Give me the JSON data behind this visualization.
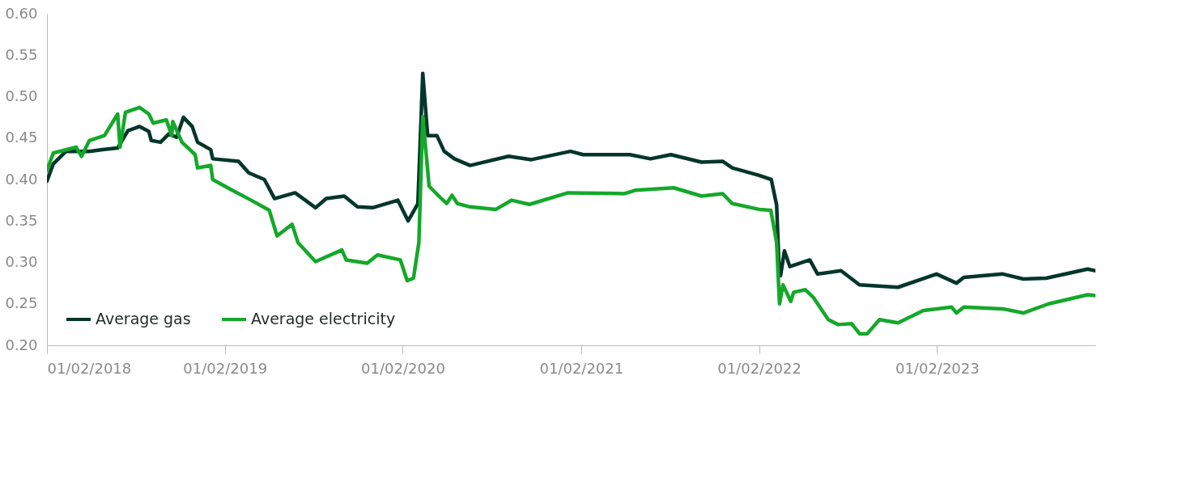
{
  "chart_data": {
    "type": "line",
    "xlim": [
      "2018-02-01",
      "2023-12-23"
    ],
    "xticks": [
      {
        "value": "2018-02-01",
        "label": "01/02/2018"
      },
      {
        "value": "2019-02-01",
        "label": "01/02/2019"
      },
      {
        "value": "2020-02-01",
        "label": "01/02/2020"
      },
      {
        "value": "2021-02-01",
        "label": "01/02/2021"
      },
      {
        "value": "2022-02-01",
        "label": "01/02/2022"
      },
      {
        "value": "2023-02-01",
        "label": "01/02/2023"
      }
    ],
    "ylim": [
      0.2,
      0.6
    ],
    "yticks": [
      {
        "value": 0.2,
        "label": "0.20"
      },
      {
        "value": 0.25,
        "label": "0.25"
      },
      {
        "value": 0.3,
        "label": "0.30"
      },
      {
        "value": 0.35,
        "label": "0.35"
      },
      {
        "value": 0.4,
        "label": "0.40"
      },
      {
        "value": 0.45,
        "label": "0.45"
      },
      {
        "value": 0.5,
        "label": "0.50"
      },
      {
        "value": 0.55,
        "label": "0.55"
      },
      {
        "value": 0.6,
        "label": "0.60"
      }
    ],
    "grid": false,
    "legend": "bottom left",
    "marker": "none",
    "line_style": "solid",
    "series": [
      {
        "name": "Average gas",
        "color": "#04362a",
        "x": [
          "2018-02-01",
          "2018-02-14",
          "2018-03-12",
          "2018-04-29",
          "2018-05-26",
          "2018-06-26",
          "2018-07-17",
          "2018-08-10",
          "2018-08-29",
          "2018-09-03",
          "2018-09-22",
          "2018-10-09",
          "2018-10-25",
          "2018-11-08",
          "2018-11-26",
          "2018-12-07",
          "2019-01-03",
          "2019-01-07",
          "2019-03-01",
          "2019-03-22",
          "2019-04-23",
          "2019-05-14",
          "2019-06-25",
          "2019-08-06",
          "2019-08-28",
          "2019-10-04",
          "2019-10-31",
          "2019-12-01",
          "2020-01-22",
          "2020-02-12",
          "2020-03-03",
          "2020-03-13",
          "2020-03-23",
          "2020-04-11",
          "2020-04-26",
          "2020-05-17",
          "2020-06-18",
          "2020-09-05",
          "2020-10-22",
          "2021-01-10",
          "2021-02-05",
          "2021-05-12",
          "2021-06-23",
          "2021-08-04",
          "2021-10-06",
          "2021-11-18",
          "2021-12-08",
          "2022-02-01",
          "2022-02-26",
          "2022-03-09",
          "2022-03-14",
          "2022-03-17",
          "2022-03-25",
          "2022-04-05",
          "2022-05-16",
          "2022-06-01",
          "2022-07-19",
          "2022-08-26",
          "2022-11-13",
          "2023-01-31",
          "2023-03-13",
          "2023-03-28",
          "2023-06-16",
          "2023-07-28",
          "2023-09-13",
          "2023-12-07",
          "2023-12-23"
        ],
        "values": [
          0.398,
          0.419,
          0.434,
          0.434,
          0.436,
          0.438,
          0.459,
          0.464,
          0.458,
          0.447,
          0.445,
          0.455,
          0.451,
          0.475,
          0.464,
          0.445,
          0.436,
          0.425,
          0.422,
          0.408,
          0.4,
          0.377,
          0.384,
          0.366,
          0.377,
          0.38,
          0.367,
          0.366,
          0.375,
          0.35,
          0.371,
          0.528,
          0.453,
          0.453,
          0.434,
          0.425,
          0.417,
          0.428,
          0.424,
          0.434,
          0.43,
          0.43,
          0.425,
          0.43,
          0.421,
          0.422,
          0.414,
          0.405,
          0.4,
          0.369,
          0.292,
          0.284,
          0.314,
          0.295,
          0.303,
          0.286,
          0.29,
          0.273,
          0.27,
          0.286,
          0.275,
          0.282,
          0.286,
          0.28,
          0.281,
          0.292,
          0.29
        ]
      },
      {
        "name": "Average electricity",
        "color": "#14a82a",
        "x": [
          "2018-02-01",
          "2018-02-14",
          "2018-04-02",
          "2018-04-13",
          "2018-04-29",
          "2018-05-30",
          "2018-06-26",
          "2018-07-01",
          "2018-07-12",
          "2018-08-10",
          "2018-08-29",
          "2018-09-07",
          "2018-10-04",
          "2018-10-15",
          "2018-10-17",
          "2018-11-05",
          "2018-12-02",
          "2018-12-07",
          "2019-01-03",
          "2019-01-07",
          "2019-02-13",
          "2019-03-27",
          "2019-05-03",
          "2019-05-19",
          "2019-06-19",
          "2019-07-01",
          "2019-08-06",
          "2019-09-29",
          "2019-10-08",
          "2019-11-20",
          "2019-12-11",
          "2020-01-27",
          "2020-02-10",
          "2020-02-23",
          "2020-03-05",
          "2020-03-13",
          "2020-03-26",
          "2020-04-15",
          "2020-05-01",
          "2020-05-12",
          "2020-05-23",
          "2020-06-18",
          "2020-08-10",
          "2020-09-11",
          "2020-10-18",
          "2021-01-05",
          "2021-05-01",
          "2021-05-23",
          "2021-08-10",
          "2021-10-06",
          "2021-11-18",
          "2021-12-08",
          "2022-02-01",
          "2022-02-25",
          "2022-03-09",
          "2022-03-14",
          "2022-03-15",
          "2022-03-22",
          "2022-04-07",
          "2022-04-13",
          "2022-05-07",
          "2022-05-23",
          "2022-06-23",
          "2022-07-13",
          "2022-08-10",
          "2022-08-26",
          "2022-09-11",
          "2022-10-06",
          "2022-11-13",
          "2023-01-04",
          "2023-03-03",
          "2023-03-13",
          "2023-03-28",
          "2023-06-16",
          "2023-07-28",
          "2023-09-18",
          "2023-12-07",
          "2023-12-23"
        ],
        "values": [
          0.411,
          0.432,
          0.439,
          0.428,
          0.447,
          0.453,
          0.479,
          0.439,
          0.481,
          0.487,
          0.479,
          0.468,
          0.472,
          0.453,
          0.47,
          0.445,
          0.43,
          0.414,
          0.417,
          0.4,
          0.388,
          0.375,
          0.363,
          0.332,
          0.346,
          0.324,
          0.301,
          0.315,
          0.303,
          0.299,
          0.309,
          0.303,
          0.278,
          0.281,
          0.324,
          0.476,
          0.392,
          0.38,
          0.371,
          0.381,
          0.371,
          0.367,
          0.364,
          0.375,
          0.37,
          0.384,
          0.383,
          0.387,
          0.39,
          0.38,
          0.383,
          0.371,
          0.364,
          0.363,
          0.324,
          0.261,
          0.25,
          0.273,
          0.253,
          0.264,
          0.267,
          0.258,
          0.231,
          0.225,
          0.226,
          0.214,
          0.214,
          0.231,
          0.227,
          0.242,
          0.246,
          0.239,
          0.246,
          0.244,
          0.239,
          0.25,
          0.261,
          0.26
        ]
      }
    ]
  }
}
